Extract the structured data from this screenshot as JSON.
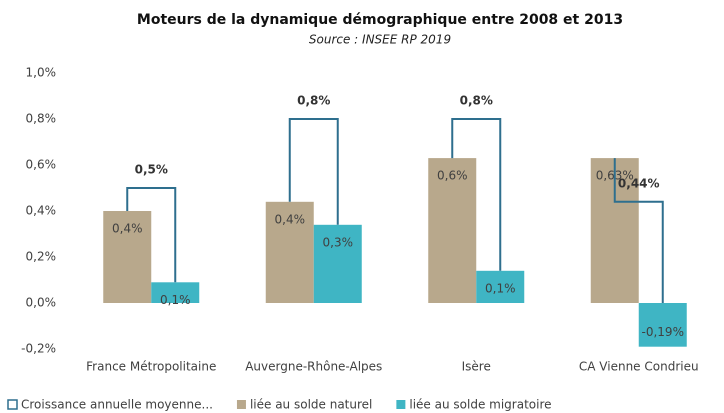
{
  "chart_data": {
    "type": "bar",
    "title": "Moteurs de la dynamique démographique entre 2008 et 2013",
    "subtitle": "Source : INSEE RP 2019",
    "categories": [
      "France Métropolitaine",
      "Auvergne-Rhône-Alpes",
      "Isère",
      "CA Vienne Condrieu"
    ],
    "series": [
      {
        "name": "Croissance annuelle moyenne...",
        "color": "#2e6f8e",
        "values": [
          0.5,
          0.8,
          0.8,
          0.44
        ],
        "value_labels": [
          "0,5%",
          "0,8%",
          "0,8%",
          "0,44%"
        ]
      },
      {
        "name": "liée au solde naturel",
        "color": "#b8a88c",
        "values": [
          0.4,
          0.44,
          0.63,
          0.63
        ],
        "value_labels": [
          "0,4%",
          "0,4%",
          "0,6%",
          "0,63%"
        ]
      },
      {
        "name": "liée au solde migratoire",
        "color": "#3fb5c4",
        "values": [
          0.09,
          0.34,
          0.14,
          -0.19
        ],
        "value_labels": [
          "0,1%",
          "0,3%",
          "0,1%",
          "-0,19%"
        ]
      }
    ],
    "ylim": [
      -0.2,
      1.0
    ],
    "yticks": [
      {
        "value": -0.2,
        "label": "-0,2%"
      },
      {
        "value": 0.0,
        "label": "0,0%"
      },
      {
        "value": 0.2,
        "label": "0,2%"
      },
      {
        "value": 0.4,
        "label": "0,4%"
      },
      {
        "value": 0.6,
        "label": "0,6%"
      },
      {
        "value": 0.8,
        "label": "0,8%"
      },
      {
        "value": 1.0,
        "label": "1,0%"
      }
    ],
    "grid": false,
    "legend": "bottom"
  }
}
